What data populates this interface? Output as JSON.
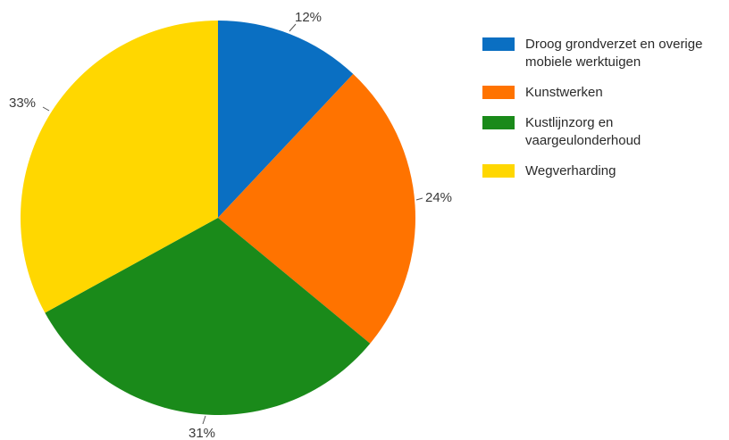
{
  "chart_data": {
    "type": "pie",
    "slices": [
      {
        "name": "Droog grondverzet en overige mobiele werktuigen",
        "value": 12,
        "label": "12%",
        "color": "#0a6fc2"
      },
      {
        "name": "Kunstwerken",
        "value": 24,
        "label": "24%",
        "color": "#ff7300"
      },
      {
        "name": "Kustlijnzorg en vaargeulonderhoud",
        "value": 31,
        "label": "31%",
        "color": "#1a8a1a"
      },
      {
        "name": "Wegverharding",
        "value": 33,
        "label": "33%",
        "color": "#ffd700"
      }
    ],
    "legend_position": "right",
    "start": "top",
    "direction": "clockwise"
  }
}
